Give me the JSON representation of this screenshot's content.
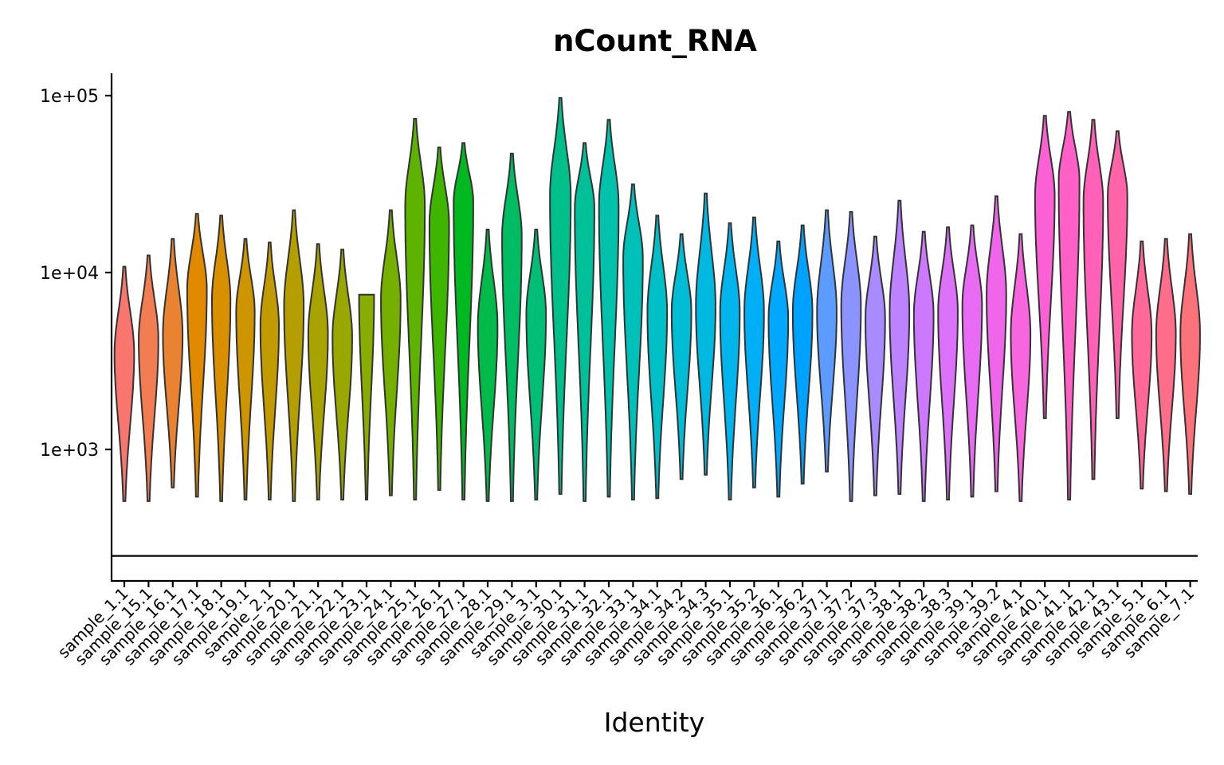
{
  "chart_data": {
    "type": "violin",
    "title": "nCount_RNA",
    "xlabel": "Identity",
    "ylabel": "",
    "y_scale": "log10",
    "ylim": [
      160,
      130000
    ],
    "y_ticks": [
      1000,
      10000,
      100000
    ],
    "y_tick_labels": [
      "1e+03",
      "1e+04",
      "1e+05"
    ],
    "grid": false,
    "legend": "none",
    "reference_line_y": 250,
    "categories": [
      "sample_1.1",
      "sample_15.1",
      "sample_16.1",
      "sample_17.1",
      "sample_18.1",
      "sample_19.1",
      "sample_2.1",
      "sample_20.1",
      "sample_21.1",
      "sample_22.1",
      "sample_23.1",
      "sample_24.1",
      "sample_25.1",
      "sample_26.1",
      "sample_27.1",
      "sample_28.1",
      "sample_29.1",
      "sample_3.1",
      "sample_30.1",
      "sample_31.1",
      "sample_32.1",
      "sample_33.1",
      "sample_34.1",
      "sample_34.2",
      "sample_34.3",
      "sample_35.1",
      "sample_35.2",
      "sample_36.1",
      "sample_36.2",
      "sample_37.1",
      "sample_37.2",
      "sample_37.3",
      "sample_38.1",
      "sample_38.2",
      "sample_38.3",
      "sample_39.1",
      "sample_39.2",
      "sample_4.1",
      "sample_40.1",
      "sample_41.1",
      "sample_42.1",
      "sample_43.1",
      "sample_5.1",
      "sample_6.1",
      "sample_7.1"
    ],
    "colors": [
      "#F8766D",
      "#F27D52",
      "#EA8331",
      "#E18A00",
      "#D89000",
      "#CD9600",
      "#C29B00",
      "#B59F00",
      "#A8A300",
      "#99A800",
      "#88AC00",
      "#75AF00",
      "#5EB300",
      "#3EB600",
      "#00B81F",
      "#00BB49",
      "#00BC62",
      "#00BE76",
      "#00BF89",
      "#00C09A",
      "#00C1AA",
      "#00C0BA",
      "#00BFC7",
      "#00BCD4",
      "#00B9E1",
      "#00B4EC",
      "#00AFF6",
      "#00A9FF",
      "#00A2FF",
      "#5C9BFF",
      "#8A93FF",
      "#A78BFF",
      "#BC82FF",
      "#CD79FF",
      "#DC71FA",
      "#E76BF3",
      "#F066EA",
      "#F765DF",
      "#FB61D4",
      "#FF60C6",
      "#FF61B8",
      "#FF64A9",
      "#FF6899",
      "#FE6D89",
      "#FB727B"
    ],
    "series": [
      {
        "name": "sample_1.1",
        "min": 510,
        "max": 10800,
        "mode": 3500,
        "width": 0.85
      },
      {
        "name": "sample_15.1",
        "min": 510,
        "max": 12500,
        "mode": 4200,
        "width": 0.85
      },
      {
        "name": "sample_16.1",
        "min": 610,
        "max": 15500,
        "mode": 4500,
        "width": 0.85
      },
      {
        "name": "sample_17.1",
        "min": 540,
        "max": 21500,
        "mode": 8000,
        "width": 0.85
      },
      {
        "name": "sample_18.1",
        "min": 510,
        "max": 21000,
        "mode": 7000,
        "width": 0.8
      },
      {
        "name": "sample_19.1",
        "min": 520,
        "max": 15500,
        "mode": 6000,
        "width": 0.8
      },
      {
        "name": "sample_2.1",
        "min": 520,
        "max": 14800,
        "mode": 5000,
        "width": 0.8
      },
      {
        "name": "sample_20.1",
        "min": 510,
        "max": 22500,
        "mode": 6500,
        "width": 0.85
      },
      {
        "name": "sample_21.1",
        "min": 520,
        "max": 14500,
        "mode": 4500,
        "width": 0.85
      },
      {
        "name": "sample_22.1",
        "min": 520,
        "max": 13500,
        "mode": 4300,
        "width": 0.85
      },
      {
        "name": "sample_23.1",
        "min": 520,
        "max": 7500,
        "mode": 7500,
        "width": 0.65
      },
      {
        "name": "sample_24.1",
        "min": 550,
        "max": 22500,
        "mode": 7000,
        "width": 0.85
      },
      {
        "name": "sample_25.1",
        "min": 520,
        "max": 74000,
        "mode": 24000,
        "width": 0.85
      },
      {
        "name": "sample_26.1",
        "min": 590,
        "max": 51000,
        "mode": 19000,
        "width": 0.85
      },
      {
        "name": "sample_27.1",
        "min": 520,
        "max": 54000,
        "mode": 25000,
        "width": 0.85
      },
      {
        "name": "sample_28.1",
        "min": 510,
        "max": 17500,
        "mode": 5000,
        "width": 0.85
      },
      {
        "name": "sample_29.1",
        "min": 510,
        "max": 47000,
        "mode": 16000,
        "width": 0.85
      },
      {
        "name": "sample_3.1",
        "min": 520,
        "max": 17500,
        "mode": 5800,
        "width": 0.85
      },
      {
        "name": "sample_30.1",
        "min": 560,
        "max": 97000,
        "mode": 27000,
        "width": 0.9
      },
      {
        "name": "sample_31.1",
        "min": 510,
        "max": 54000,
        "mode": 23000,
        "width": 0.85
      },
      {
        "name": "sample_32.1",
        "min": 540,
        "max": 73000,
        "mode": 24000,
        "width": 0.85
      },
      {
        "name": "sample_33.1",
        "min": 520,
        "max": 31500,
        "mode": 12000,
        "width": 0.85
      },
      {
        "name": "sample_34.1",
        "min": 530,
        "max": 21000,
        "mode": 6000,
        "width": 0.85
      },
      {
        "name": "sample_34.2",
        "min": 680,
        "max": 16500,
        "mode": 6000,
        "width": 0.85
      },
      {
        "name": "sample_34.3",
        "min": 720,
        "max": 28000,
        "mode": 6500,
        "width": 0.85
      },
      {
        "name": "sample_35.1",
        "min": 520,
        "max": 19000,
        "mode": 6000,
        "width": 0.85
      },
      {
        "name": "sample_35.2",
        "min": 610,
        "max": 20500,
        "mode": 6000,
        "width": 0.85
      },
      {
        "name": "sample_36.1",
        "min": 540,
        "max": 15000,
        "mode": 5500,
        "width": 0.85
      },
      {
        "name": "sample_36.2",
        "min": 640,
        "max": 18500,
        "mode": 6000,
        "width": 0.85
      },
      {
        "name": "sample_37.1",
        "min": 750,
        "max": 22500,
        "mode": 6000,
        "width": 0.85
      },
      {
        "name": "sample_37.2",
        "min": 510,
        "max": 22000,
        "mode": 6500,
        "width": 0.85
      },
      {
        "name": "sample_37.3",
        "min": 550,
        "max": 16000,
        "mode": 5500,
        "width": 0.85
      },
      {
        "name": "sample_38.1",
        "min": 560,
        "max": 25500,
        "mode": 6000,
        "width": 0.85
      },
      {
        "name": "sample_38.2",
        "min": 510,
        "max": 17000,
        "mode": 5800,
        "width": 0.85
      },
      {
        "name": "sample_38.3",
        "min": 520,
        "max": 18000,
        "mode": 6000,
        "width": 0.85
      },
      {
        "name": "sample_39.1",
        "min": 540,
        "max": 18500,
        "mode": 6500,
        "width": 0.85
      },
      {
        "name": "sample_39.2",
        "min": 580,
        "max": 27000,
        "mode": 7500,
        "width": 0.85
      },
      {
        "name": "sample_4.1",
        "min": 510,
        "max": 16500,
        "mode": 4500,
        "width": 0.85
      },
      {
        "name": "sample_40.1",
        "min": 1500,
        "max": 77000,
        "mode": 27000,
        "width": 0.85
      },
      {
        "name": "sample_41.1",
        "min": 520,
        "max": 81000,
        "mode": 33000,
        "width": 0.9
      },
      {
        "name": "sample_42.1",
        "min": 680,
        "max": 73000,
        "mode": 25000,
        "width": 0.85
      },
      {
        "name": "sample_43.1",
        "min": 1500,
        "max": 63000,
        "mode": 27000,
        "width": 0.85
      },
      {
        "name": "sample_5.1",
        "min": 600,
        "max": 15000,
        "mode": 4500,
        "width": 0.85
      },
      {
        "name": "sample_6.1",
        "min": 580,
        "max": 15500,
        "mode": 4500,
        "width": 0.85
      },
      {
        "name": "sample_7.1",
        "min": 560,
        "max": 16500,
        "mode": 4500,
        "width": 0.85
      }
    ]
  }
}
